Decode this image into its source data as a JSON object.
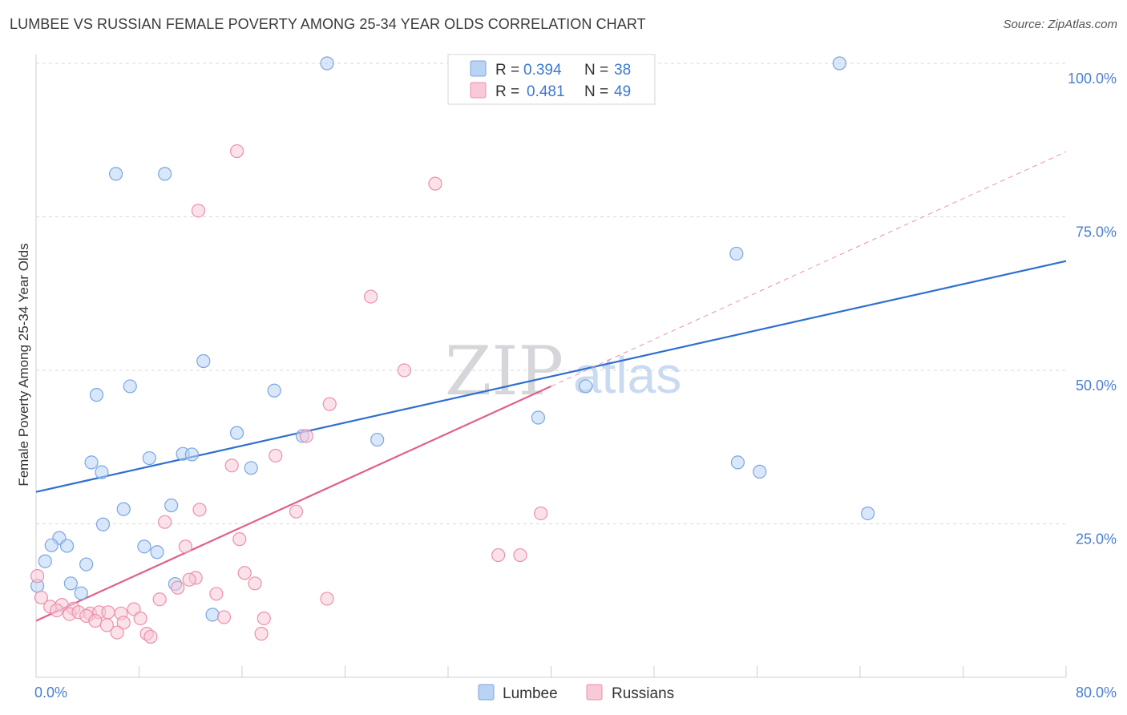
{
  "header": {
    "title": "LUMBEE VS RUSSIAN FEMALE POVERTY AMONG 25-34 YEAR OLDS CORRELATION CHART",
    "source": "Source: ZipAtlas.com"
  },
  "watermark": {
    "zip": "ZIP",
    "atlas": "atlas"
  },
  "colors": {
    "lumbee_fill": "#b9d3f5",
    "lumbee_stroke": "#7aa6e0",
    "lumbee_line": "#2f6fd0",
    "russian_fill": "#f8c9d6",
    "russian_stroke": "#ec90ab",
    "russian_line": "#e0608a",
    "tick": "#4a7fd0",
    "grid": "#d9d9d9"
  },
  "legend": {
    "rows": [
      {
        "series": "Lumbee",
        "r_label": "R =",
        "r_value": "0.394",
        "n_label": "N =",
        "n_value": "38"
      },
      {
        "series": "Russians",
        "r_label": "R =",
        "r_value": "0.481",
        "n_label": "N =",
        "n_value": "49"
      }
    ]
  },
  "chart_data": {
    "type": "scatter",
    "title": "LUMBEE VS RUSSIAN FEMALE POVERTY AMONG 25-34 YEAR OLDS CORRELATION CHART",
    "xlabel": "",
    "ylabel": "Female Poverty Among 25-34 Year Olds",
    "xlim": [
      0,
      80
    ],
    "ylim": [
      0,
      100
    ],
    "x_tick_labels": [
      "0.0%",
      "80.0%"
    ],
    "y_ticks": [
      25,
      50,
      75,
      100
    ],
    "y_tick_labels": [
      "25.0%",
      "50.0%",
      "75.0%",
      "100.0%"
    ],
    "grid": true,
    "legend_position": "bottom",
    "series": [
      {
        "name": "Lumbee",
        "r": 0.394,
        "n": 38,
        "trend": {
          "x": [
            0,
            80
          ],
          "y": [
            30.2,
            67.8
          ]
        },
        "points": [
          [
            22.6,
            100
          ],
          [
            62.4,
            100
          ],
          [
            6.2,
            82
          ],
          [
            10,
            82
          ],
          [
            54.4,
            69
          ],
          [
            13,
            51.5
          ],
          [
            7.3,
            47.4
          ],
          [
            4.7,
            46
          ],
          [
            18.5,
            46.7
          ],
          [
            42.7,
            47.4
          ],
          [
            39,
            42.3
          ],
          [
            15.6,
            39.8
          ],
          [
            20.7,
            39.3
          ],
          [
            26.5,
            38.7
          ],
          [
            4.3,
            35
          ],
          [
            5.1,
            33.4
          ],
          [
            8.8,
            35.7
          ],
          [
            11.4,
            36.4
          ],
          [
            12.1,
            36.3
          ],
          [
            16.7,
            34.1
          ],
          [
            54.5,
            35
          ],
          [
            56.2,
            33.5
          ],
          [
            64.6,
            26.7
          ],
          [
            6.8,
            27.4
          ],
          [
            10.5,
            28
          ],
          [
            5.2,
            24.9
          ],
          [
            1.8,
            22.7
          ],
          [
            1.2,
            21.5
          ],
          [
            2.4,
            21.4
          ],
          [
            8.4,
            21.3
          ],
          [
            9.4,
            20.4
          ],
          [
            0.7,
            18.9
          ],
          [
            3.9,
            18.4
          ],
          [
            2.7,
            15.3
          ],
          [
            10.8,
            15.2
          ],
          [
            0.1,
            14.9
          ],
          [
            3.5,
            13.7
          ],
          [
            13.7,
            10.2
          ]
        ]
      },
      {
        "name": "Russians",
        "r": 0.481,
        "n": 49,
        "trend": {
          "x": [
            0,
            40
          ],
          "y": [
            9.2,
            47.4
          ]
        },
        "trend_extension": {
          "x": [
            40,
            80
          ],
          "y": [
            47.4,
            85.6
          ]
        },
        "points": [
          [
            15.6,
            85.7
          ],
          [
            31,
            80.4
          ],
          [
            12.6,
            76
          ],
          [
            26,
            62
          ],
          [
            28.6,
            50
          ],
          [
            22.8,
            44.5
          ],
          [
            21,
            39.3
          ],
          [
            18.6,
            36.1
          ],
          [
            15.2,
            34.5
          ],
          [
            20.2,
            27
          ],
          [
            12.7,
            27.3
          ],
          [
            39.2,
            26.7
          ],
          [
            10,
            25.3
          ],
          [
            15.8,
            22.5
          ],
          [
            11.6,
            21.3
          ],
          [
            35.9,
            19.9
          ],
          [
            37.6,
            19.9
          ],
          [
            16.2,
            17
          ],
          [
            12.4,
            16.2
          ],
          [
            11.9,
            15.9
          ],
          [
            17,
            15.3
          ],
          [
            0.1,
            16.5
          ],
          [
            11,
            14.6
          ],
          [
            14,
            13.6
          ],
          [
            9.6,
            12.7
          ],
          [
            22.6,
            12.8
          ],
          [
            0.4,
            13
          ],
          [
            1.1,
            11.5
          ],
          [
            2,
            11.8
          ],
          [
            2.9,
            11.2
          ],
          [
            1.6,
            10.9
          ],
          [
            2.6,
            10.3
          ],
          [
            3.3,
            10.6
          ],
          [
            4.2,
            10.4
          ],
          [
            3.9,
            10
          ],
          [
            4.9,
            10.6
          ],
          [
            5.6,
            10.6
          ],
          [
            6.6,
            10.4
          ],
          [
            7.6,
            11.1
          ],
          [
            4.6,
            9.2
          ],
          [
            5.5,
            8.5
          ],
          [
            6.8,
            8.9
          ],
          [
            8.1,
            9.6
          ],
          [
            14.6,
            9.8
          ],
          [
            17.7,
            9.6
          ],
          [
            6.3,
            7.3
          ],
          [
            8.6,
            7.1
          ],
          [
            8.9,
            6.6
          ],
          [
            17.5,
            7.1
          ]
        ]
      }
    ]
  }
}
